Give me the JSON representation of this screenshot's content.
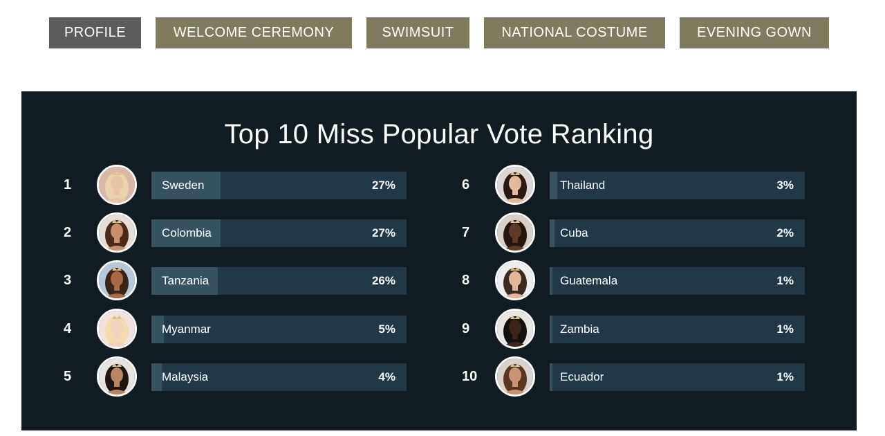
{
  "tabs": [
    {
      "label": "PROFILE",
      "active": true
    },
    {
      "label": "WELCOME CEREMONY",
      "active": false
    },
    {
      "label": "SWIMSUIT",
      "active": false
    },
    {
      "label": "NATIONAL COSTUME",
      "active": false
    },
    {
      "label": "EVENING GOWN",
      "active": false
    }
  ],
  "ranking": {
    "title": "Top 10 Miss Popular Vote Ranking",
    "entries": [
      {
        "rank": "1",
        "country": "Sweden",
        "percent": "27%",
        "value": 27,
        "avatar": "contestant-sweden-photo"
      },
      {
        "rank": "2",
        "country": "Colombia",
        "percent": "27%",
        "value": 27,
        "avatar": "contestant-colombia-photo"
      },
      {
        "rank": "3",
        "country": "Tanzania",
        "percent": "26%",
        "value": 26,
        "avatar": "contestant-tanzania-photo"
      },
      {
        "rank": "4",
        "country": "Myanmar",
        "percent": "5%",
        "value": 5,
        "avatar": "contestant-myanmar-photo"
      },
      {
        "rank": "5",
        "country": "Malaysia",
        "percent": "4%",
        "value": 4,
        "avatar": "contestant-malaysia-photo"
      },
      {
        "rank": "6",
        "country": "Thailand",
        "percent": "3%",
        "value": 3,
        "avatar": "contestant-thailand-photo"
      },
      {
        "rank": "7",
        "country": "Cuba",
        "percent": "2%",
        "value": 2,
        "avatar": "contestant-cuba-photo"
      },
      {
        "rank": "8",
        "country": "Guatemala",
        "percent": "1%",
        "value": 1,
        "avatar": "contestant-guatemala-photo"
      },
      {
        "rank": "9",
        "country": "Zambia",
        "percent": "1%",
        "value": 1,
        "avatar": "contestant-zambia-photo"
      },
      {
        "rank": "10",
        "country": "Ecuador",
        "percent": "1%",
        "value": 1,
        "avatar": "contestant-ecuador-photo"
      }
    ]
  },
  "colors": {
    "tab_active": "#5c5c5f",
    "tab_inactive": "#7e7b5e",
    "panel_bg": "#111c22",
    "bar_bg": "#223846",
    "bar_fill": "#36525f"
  }
}
